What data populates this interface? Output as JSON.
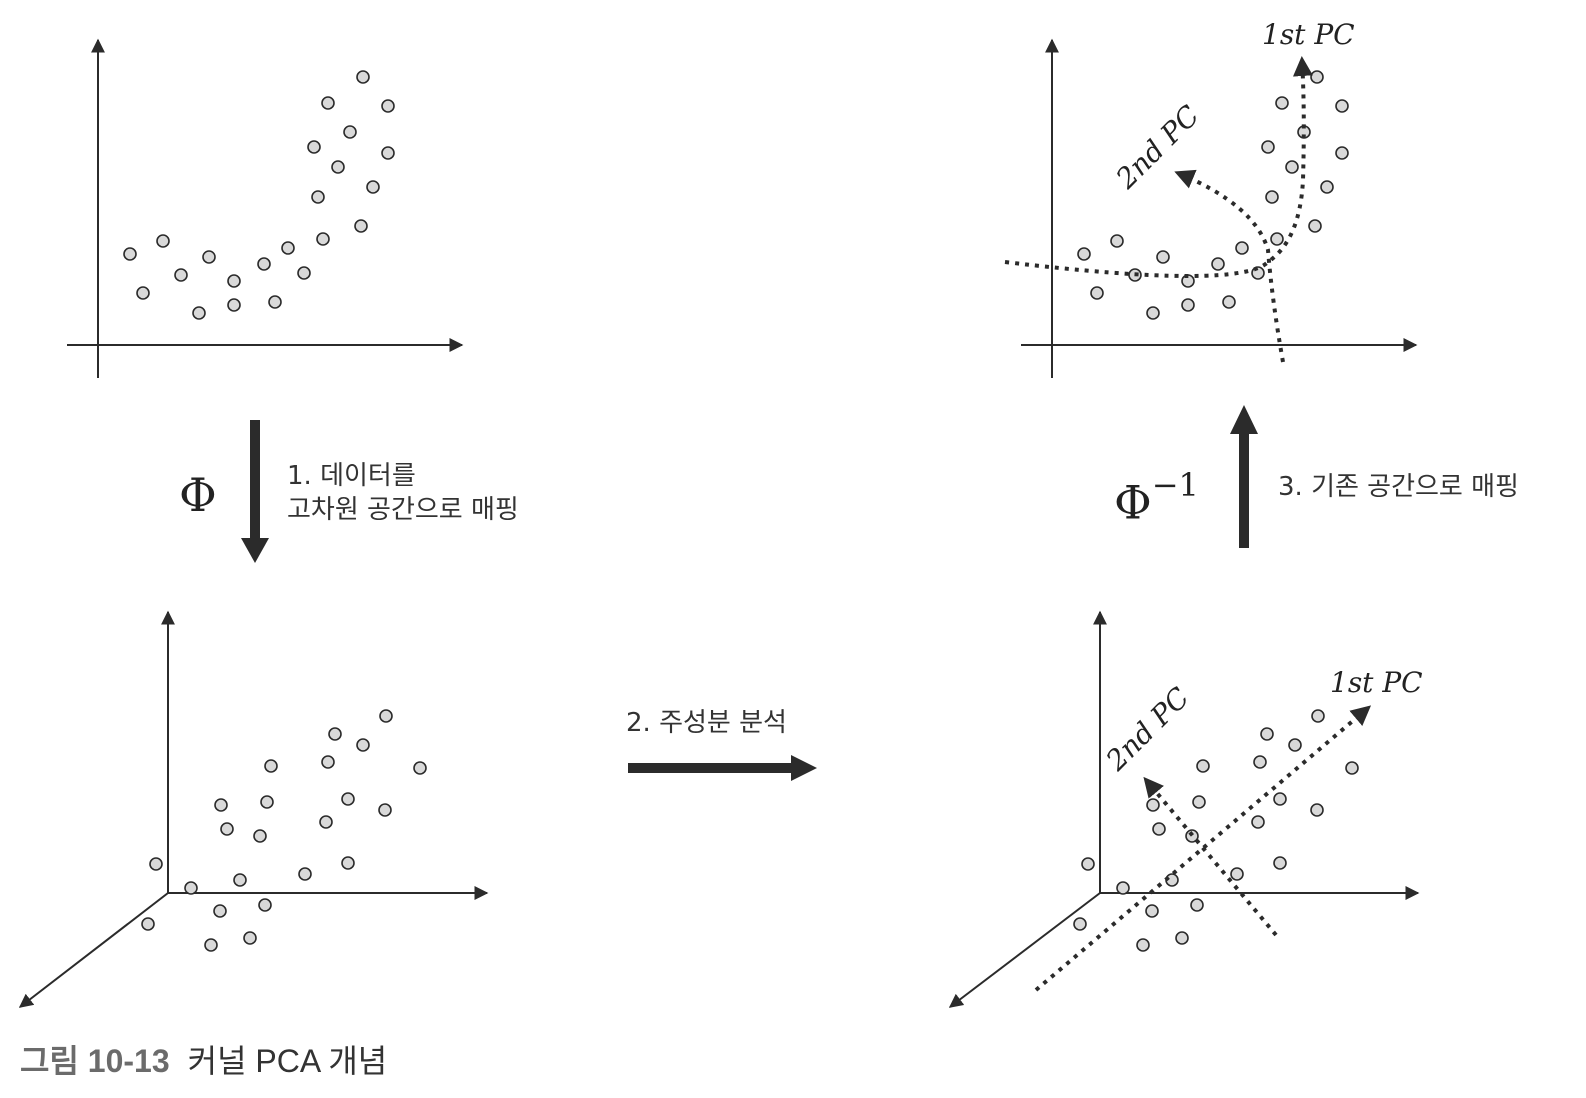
{
  "steps": {
    "step1_line1": "1. 데이터를",
    "step1_line2": "고차원 공간으로 매핑",
    "step2": "2. 주성분 분석",
    "step3": "3. 기존 공간으로 매핑"
  },
  "symbols": {
    "phi": "Φ",
    "phi_inverse_base": "Φ",
    "phi_inverse_exp": "−1"
  },
  "pc_labels": {
    "first": "1st PC",
    "second": "2nd PC"
  },
  "caption": {
    "number": "그림 10-13",
    "title": "커널 PCA 개념"
  },
  "colors": {
    "point_fill": "#d9d9d9",
    "stroke": "#2b2b2b"
  }
}
